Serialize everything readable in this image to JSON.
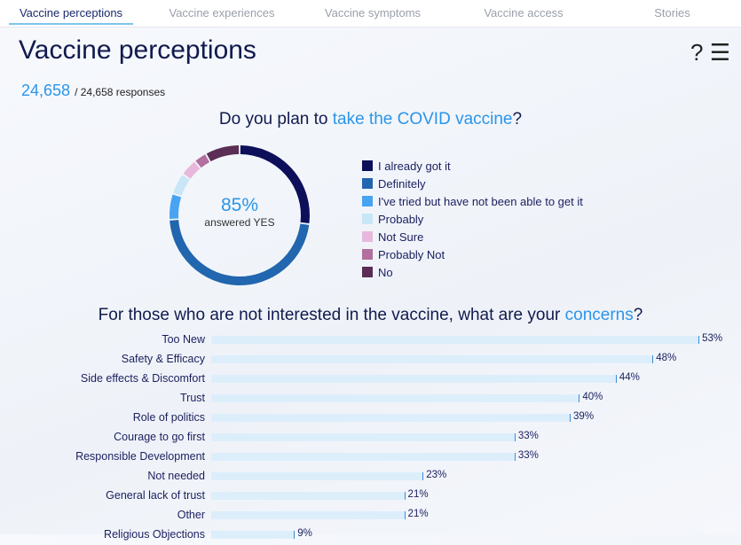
{
  "tabs": [
    "Vaccine perceptions",
    "Vaccine experiences",
    "Vaccine symptoms",
    "Vaccine access",
    "Stories"
  ],
  "title": "Vaccine perceptions",
  "help_icon": "?",
  "responses": {
    "count": "24,658",
    "total": "/ 24,658 responses"
  },
  "q1": {
    "pre": "Do you plan to ",
    "hl": "take the COVID vaccine",
    "post": "?"
  },
  "donut": {
    "percent": "85%",
    "label": "answered YES"
  },
  "chart_data": [
    {
      "type": "pie",
      "title": "Do you plan to take the COVID vaccine?",
      "labels": [
        "I already got it",
        "Definitely",
        "I've tried but have not been able to get it",
        "Probably",
        "Not Sure",
        "Probably Not",
        "No"
      ],
      "values": [
        27,
        47,
        6,
        5,
        4,
        3,
        8
      ],
      "colors": [
        "#0d0f5a",
        "#2166ae",
        "#48a3f0",
        "#c8e6f6",
        "#e8b8dc",
        "#b36f9e",
        "#5a2e55"
      ]
    },
    {
      "type": "bar",
      "title": "For those who are not interested in the vaccine, what are your concerns?",
      "categories": [
        "Too New",
        "Safety & Efficacy",
        "Side effects & Discomfort",
        "Trust",
        "Role of politics",
        "Courage to go first",
        "Responsible Development",
        "Not needed",
        "General lack of trust",
        "Other",
        "Religious Objections"
      ],
      "values": [
        53,
        48,
        44,
        40,
        39,
        33,
        33,
        23,
        21,
        21,
        9
      ],
      "labels": [
        "53%",
        "48%",
        "44%",
        "40%",
        "39%",
        "33%",
        "33%",
        "23%",
        "21%",
        "21%",
        "9%"
      ]
    }
  ],
  "q2": {
    "pre": "For those who are not interested in the vaccine, what are your ",
    "hl": "concerns",
    "post": "?"
  }
}
